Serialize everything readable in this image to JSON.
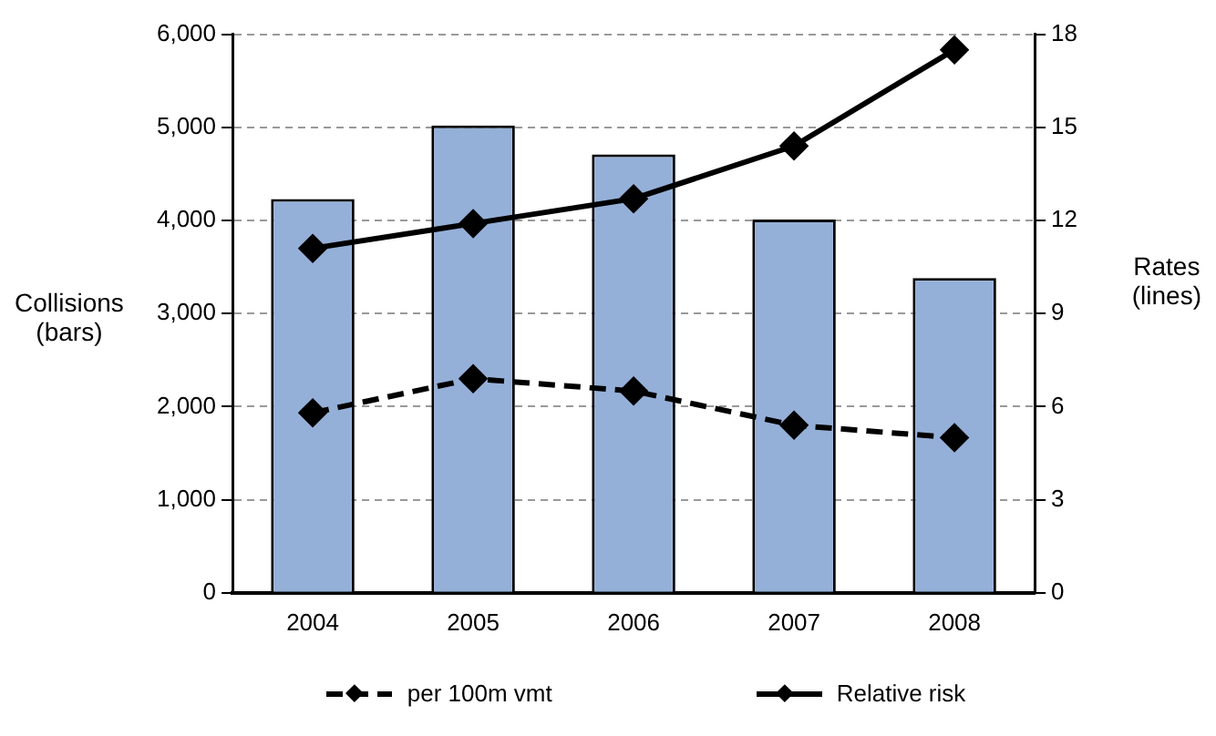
{
  "chart_data": {
    "type": "bar",
    "categories": [
      "2004",
      "2005",
      "2006",
      "2007",
      "2008"
    ],
    "ylabel": "Collisions\n(bars)",
    "y2label": "Rates\n(lines)",
    "series": [
      {
        "color": "#95b0d8",
        "values": [
          4230,
          5020,
          4710,
          4010,
          3380
        ]
      },
      {
        "type": "line",
        "name": "per 100m vmt",
        "axis": "y2",
        "color": "#000000",
        "line_style": "dashed",
        "values": [
          5.8,
          6.9,
          6.5,
          5.4,
          5.0
        ]
      },
      {
        "type": "line",
        "name": "Relative risk",
        "axis": "y2",
        "color": "#000000",
        "line_style": "solid",
        "values": [
          11.1,
          11.9,
          12.7,
          14.4,
          17.5
        ]
      }
    ],
    "ylim": [
      0,
      6000
    ],
    "yticks": [
      {
        "value": 0,
        "label": "0"
      },
      {
        "value": 1000,
        "label": "1,000"
      },
      {
        "value": 2000,
        "label": "2,000"
      },
      {
        "value": 3000,
        "label": "3,000"
      },
      {
        "value": 4000,
        "label": "4,000"
      },
      {
        "value": 5000,
        "label": "5,000"
      },
      {
        "value": 6000,
        "label": "6,000"
      }
    ],
    "y2lim": [
      0,
      18
    ],
    "y2ticks": [
      0,
      3,
      6,
      9,
      12,
      15,
      18
    ],
    "grid": "y",
    "legend": "bottom",
    "marker": "diamond"
  }
}
